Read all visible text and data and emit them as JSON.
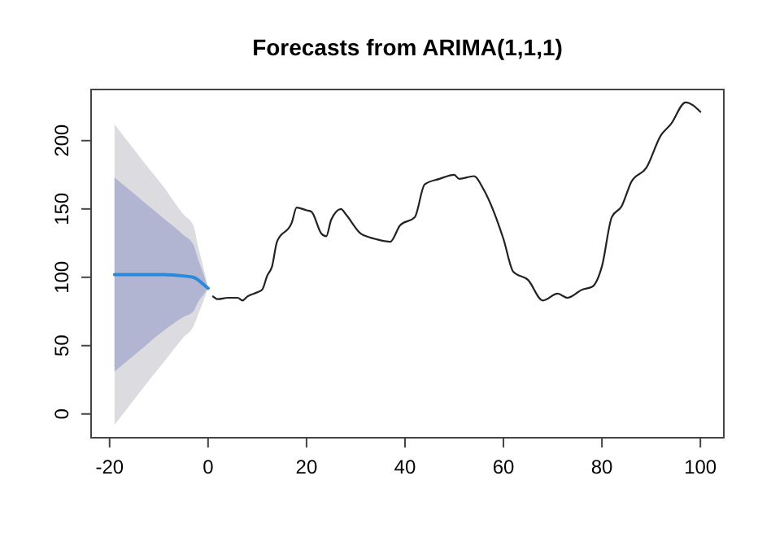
{
  "chart_data": {
    "type": "line",
    "title": "Forecasts from ARIMA(1,1,1)",
    "xlim": [
      -23.76,
      104.76
    ],
    "ylim": [
      -17.4,
      237.4
    ],
    "xticks": [
      -20,
      0,
      20,
      40,
      60,
      80,
      100
    ],
    "yticks": [
      0,
      50,
      100,
      150,
      200
    ],
    "grid": false,
    "marker": "none",
    "line_style": "solid",
    "series": [
      {
        "color": "#dcdce0",
        "x": [
          -19,
          -16,
          -13,
          -9,
          -5,
          -3,
          -2,
          -1,
          0
        ],
        "values": [
          null,
          null,
          null,
          null,
          null,
          null,
          null,
          null,
          null
        ],
        "lower": [
          -8,
          6,
          20,
          38,
          56,
          64,
          73,
          82,
          92
        ],
        "upper": [
          212,
          198,
          184,
          166,
          146,
          138,
          122,
          108,
          92
        ]
      },
      {
        "color": "#2b8ad8",
        "x": [
          -19,
          -16,
          -13,
          -9,
          -5,
          -3,
          -2,
          -1,
          0
        ],
        "values": [
          102,
          102,
          102,
          102,
          101,
          100,
          98,
          95,
          92
        ],
        "lower": [
          31,
          40,
          49,
          61,
          71,
          75,
          82,
          87,
          92
        ],
        "upper": [
          173,
          164,
          155,
          143,
          131,
          124,
          113,
          103,
          92
        ]
      },
      {
        "color": "#222222",
        "x": [
          1,
          2,
          4,
          6,
          7,
          8,
          10,
          11,
          12,
          13,
          14,
          17,
          18,
          20,
          21,
          23,
          24,
          25,
          27,
          28,
          31,
          33,
          34,
          37,
          39,
          42,
          44,
          47,
          50,
          51,
          54,
          56,
          60,
          62,
          65,
          68,
          71,
          73,
          76,
          78,
          80,
          82,
          84,
          86,
          89,
          92,
          94,
          97,
          100
        ],
        "values": [
          86,
          84,
          85,
          85,
          83,
          86,
          89,
          91,
          101,
          108,
          126,
          140,
          151,
          149,
          148,
          132,
          130,
          142,
          150,
          146,
          132,
          129,
          128,
          126,
          138,
          144,
          168,
          172,
          175,
          172,
          174,
          164,
          128,
          104,
          98,
          83,
          88,
          85,
          91,
          93,
          108,
          144,
          152,
          170,
          180,
          204,
          212,
          228,
          221
        ]
      }
    ]
  }
}
